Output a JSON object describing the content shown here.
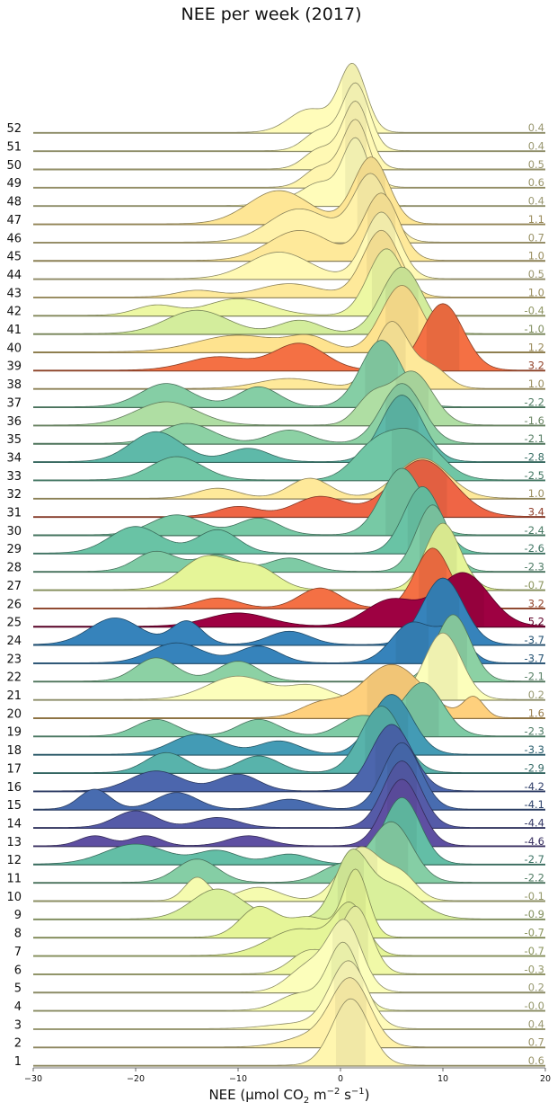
{
  "chart_data": {
    "type": "ridgeline",
    "title": "NEE per week (2017)",
    "xlabel": {
      "prefix": "NEE (µmol CO",
      "sub": "2",
      "mid1": " m",
      "sup1": "−2",
      "mid2": " s",
      "sup2": "−1",
      "suffix": ")"
    },
    "xlim": [
      -30,
      20
    ],
    "xticks": [
      -30,
      -20,
      -10,
      0,
      10,
      20
    ],
    "colormap": "Spectral_r",
    "mean_range": [
      -4.6,
      5.2
    ],
    "weeks": [
      {
        "week": 1,
        "mean": "0.6",
        "peaks": [
          [
            1,
            1.0,
            1.8
          ]
        ]
      },
      {
        "week": 2,
        "mean": "0.7",
        "peaks": [
          [
            1,
            1.0,
            1.9
          ],
          [
            -3,
            0.15,
            2.5
          ]
        ]
      },
      {
        "week": 3,
        "mean": "0.4",
        "peaks": [
          [
            0.8,
            1.0,
            1.8
          ],
          [
            -4,
            0.08,
            3
          ]
        ]
      },
      {
        "week": 4,
        "mean": "-0.0",
        "peaks": [
          [
            0.3,
            1.0,
            1.5
          ],
          [
            -4,
            0.25,
            2
          ]
        ]
      },
      {
        "week": 5,
        "mean": "0.2",
        "peaks": [
          [
            0.5,
            1.0,
            1.6
          ],
          [
            -3,
            0.4,
            2
          ]
        ]
      },
      {
        "week": 6,
        "mean": "-0.3",
        "peaks": [
          [
            1.5,
            1.0,
            1.5
          ],
          [
            -3,
            0.35,
            1.8
          ]
        ]
      },
      {
        "week": 7,
        "mean": "-0.7",
        "peaks": [
          [
            1,
            0.7,
            1.5
          ],
          [
            -4,
            0.4,
            3
          ]
        ]
      },
      {
        "week": 8,
        "mean": "-0.7",
        "peaks": [
          [
            1.5,
            1.0,
            1.2
          ],
          [
            -8,
            0.45,
            1.8
          ],
          [
            -3,
            0.3,
            2
          ]
        ]
      },
      {
        "week": 9,
        "mean": "-0.9",
        "peaks": [
          [
            1,
            0.9,
            1.6
          ],
          [
            -12,
            0.45,
            2.5
          ],
          [
            5,
            0.5,
            2.5
          ]
        ]
      },
      {
        "week": 10,
        "mean": "-0.1",
        "peaks": [
          [
            2,
            0.8,
            2
          ],
          [
            -14,
            0.35,
            1.2
          ],
          [
            -8,
            0.2,
            2
          ],
          [
            6,
            0.35,
            1.5
          ]
        ]
      },
      {
        "week": 11,
        "mean": "-2.2",
        "peaks": [
          [
            5,
            0.9,
            2
          ],
          [
            -14,
            0.35,
            2
          ],
          [
            0,
            0.25,
            2
          ]
        ]
      },
      {
        "week": 12,
        "mean": "-2.7",
        "peaks": [
          [
            6,
            1.0,
            1.8
          ],
          [
            -20,
            0.3,
            3
          ],
          [
            -12,
            0.2,
            2
          ],
          [
            -5,
            0.15,
            2
          ]
        ]
      },
      {
        "week": 13,
        "mean": "-4.6",
        "peaks": [
          [
            6,
            1.0,
            1.8
          ],
          [
            -24,
            0.15,
            1.5
          ],
          [
            -19,
            0.15,
            1.5
          ],
          [
            -9,
            0.15,
            2
          ]
        ]
      },
      {
        "week": 14,
        "mean": "-4.4",
        "peaks": [
          [
            6,
            1.0,
            1.8
          ],
          [
            -20,
            0.25,
            2
          ],
          [
            -12,
            0.15,
            2
          ]
        ]
      },
      {
        "week": 15,
        "mean": "-4.1",
        "peaks": [
          [
            6,
            1.0,
            1.8
          ],
          [
            -24,
            0.3,
            1.5
          ],
          [
            -16,
            0.25,
            2
          ],
          [
            -5,
            0.15,
            2
          ]
        ]
      },
      {
        "week": 16,
        "mean": "-4.2",
        "peaks": [
          [
            5,
            1.0,
            2
          ],
          [
            -18,
            0.3,
            2.5
          ],
          [
            -10,
            0.25,
            2
          ]
        ]
      },
      {
        "week": 17,
        "mean": "-2.9",
        "peaks": [
          [
            4,
            1.0,
            2
          ],
          [
            -17,
            0.3,
            2
          ],
          [
            -8,
            0.25,
            2
          ]
        ]
      },
      {
        "week": 18,
        "mean": "-3.3",
        "peaks": [
          [
            5,
            0.9,
            2
          ],
          [
            -14,
            0.3,
            2.5
          ],
          [
            -6,
            0.2,
            2
          ]
        ]
      },
      {
        "week": 19,
        "mean": "-2.3",
        "peaks": [
          [
            8,
            0.8,
            2
          ],
          [
            -18,
            0.25,
            2
          ],
          [
            -8,
            0.25,
            2
          ],
          [
            2,
            0.3,
            2
          ]
        ]
      },
      {
        "week": 20,
        "mean": "1.6",
        "peaks": [
          [
            5,
            0.8,
            3
          ],
          [
            13,
            0.3,
            1
          ],
          [
            -2,
            0.2,
            2
          ]
        ]
      },
      {
        "week": 21,
        "mean": "0.2",
        "peaks": [
          [
            10,
            1.0,
            1.8
          ],
          [
            -10,
            0.35,
            3
          ],
          [
            -3,
            0.2,
            2
          ]
        ]
      },
      {
        "week": 22,
        "mean": "-2.1",
        "peaks": [
          [
            11,
            1.0,
            1.7
          ],
          [
            -18,
            0.35,
            2
          ],
          [
            -10,
            0.3,
            2
          ]
        ]
      },
      {
        "week": 23,
        "mean": "-3.7",
        "peaks": [
          [
            7,
            0.6,
            2
          ],
          [
            11,
            0.45,
            1.5
          ],
          [
            -16,
            0.3,
            2.5
          ],
          [
            -8,
            0.25,
            2
          ]
        ]
      },
      {
        "week": 24,
        "mean": "-3.7",
        "peaks": [
          [
            10,
            1.0,
            2
          ],
          [
            -22,
            0.4,
            2.5
          ],
          [
            -15,
            0.35,
            1.5
          ],
          [
            -5,
            0.2,
            2
          ]
        ]
      },
      {
        "week": 25,
        "mean": "5.2",
        "peaks": [
          [
            12,
            0.8,
            2.5
          ],
          [
            5,
            0.4,
            2.5
          ],
          [
            -10,
            0.2,
            3
          ]
        ]
      },
      {
        "week": 26,
        "mean": "3.2",
        "peaks": [
          [
            9,
            0.9,
            1.7
          ],
          [
            -2,
            0.3,
            2
          ],
          [
            -12,
            0.15,
            2
          ]
        ]
      },
      {
        "week": 27,
        "mean": "-0.7",
        "peaks": [
          [
            10,
            1.0,
            1.7
          ],
          [
            -13,
            0.5,
            2.5
          ],
          [
            -8,
            0.3,
            2
          ]
        ]
      },
      {
        "week": 28,
        "mean": "-2.3",
        "peaks": [
          [
            9,
            1.0,
            1.6
          ],
          [
            -18,
            0.3,
            2
          ],
          [
            -12,
            0.25,
            2
          ],
          [
            -5,
            0.2,
            2
          ]
        ]
      },
      {
        "week": 29,
        "mean": "-2.6",
        "peaks": [
          [
            8,
            1.0,
            1.8
          ],
          [
            -20,
            0.4,
            2.5
          ],
          [
            -12,
            0.35,
            2
          ]
        ]
      },
      {
        "week": 30,
        "mean": "-2.4",
        "peaks": [
          [
            6,
            1.0,
            2
          ],
          [
            -16,
            0.3,
            2.5
          ],
          [
            -8,
            0.25,
            2
          ]
        ]
      },
      {
        "week": 31,
        "mean": "3.4",
        "peaks": [
          [
            8,
            0.85,
            3
          ],
          [
            -2,
            0.3,
            2.5
          ],
          [
            -10,
            0.15,
            2
          ]
        ]
      },
      {
        "week": 32,
        "mean": "1.0",
        "peaks": [
          [
            8,
            0.6,
            2.5
          ],
          [
            -3,
            0.3,
            2
          ],
          [
            -12,
            0.15,
            2
          ]
        ]
      },
      {
        "week": 33,
        "mean": "-2.5",
        "peaks": [
          [
            7,
            0.7,
            2.5
          ],
          [
            3,
            0.4,
            2
          ],
          [
            -16,
            0.35,
            2.5
          ]
        ]
      },
      {
        "week": 34,
        "mean": "-2.8",
        "peaks": [
          [
            6,
            1.0,
            2
          ],
          [
            -18,
            0.45,
            2.5
          ],
          [
            -9,
            0.2,
            2
          ]
        ]
      },
      {
        "week": 35,
        "mean": "-2.1",
        "peaks": [
          [
            6,
            0.9,
            2
          ],
          [
            -15,
            0.3,
            2.5
          ],
          [
            -5,
            0.2,
            2
          ]
        ]
      },
      {
        "week": 36,
        "mean": "-1.6",
        "peaks": [
          [
            7,
            0.8,
            2
          ],
          [
            -17,
            0.35,
            3
          ],
          [
            3,
            0.4,
            1.5
          ]
        ]
      },
      {
        "week": 37,
        "mean": "-2.2",
        "peaks": [
          [
            4,
            1.0,
            2
          ],
          [
            -17,
            0.35,
            2.5
          ],
          [
            -8,
            0.3,
            2
          ]
        ]
      },
      {
        "week": 38,
        "mean": "1.0",
        "peaks": [
          [
            5,
            1.0,
            1.7
          ],
          [
            9,
            0.3,
            1.5
          ],
          [
            -5,
            0.15,
            3
          ]
        ]
      },
      {
        "week": 39,
        "mean": "3.2",
        "peaks": [
          [
            10,
            1.0,
            2
          ],
          [
            -4,
            0.4,
            2.5
          ],
          [
            -12,
            0.2,
            3
          ]
        ]
      },
      {
        "week": 40,
        "mean": "1.2",
        "peaks": [
          [
            6,
            1.0,
            2
          ],
          [
            -10,
            0.25,
            4
          ],
          [
            -3,
            0.2,
            2
          ]
        ]
      },
      {
        "week": 41,
        "mean": "-1.0",
        "peaks": [
          [
            6,
            1.0,
            2
          ],
          [
            -14,
            0.35,
            3
          ],
          [
            -4,
            0.2,
            2
          ]
        ]
      },
      {
        "week": 42,
        "mean": "-0.4",
        "peaks": [
          [
            4.5,
            1.0,
            1.8
          ],
          [
            -10,
            0.25,
            3
          ],
          [
            -18,
            0.15,
            2
          ]
        ]
      },
      {
        "week": 43,
        "mean": "1.0",
        "peaks": [
          [
            4,
            1.0,
            1.8
          ],
          [
            -5,
            0.2,
            3
          ],
          [
            -14,
            0.1,
            2
          ]
        ]
      },
      {
        "week": 44,
        "mean": "0.5",
        "peaks": [
          [
            4,
            1.0,
            1.7
          ],
          [
            -6,
            0.4,
            3
          ]
        ]
      },
      {
        "week": 45,
        "mean": "1.0",
        "peaks": [
          [
            4,
            1.0,
            1.7
          ],
          [
            -4,
            0.45,
            3
          ]
        ]
      },
      {
        "week": 46,
        "mean": "0.7",
        "peaks": [
          [
            3,
            1.0,
            1.7
          ],
          [
            -4,
            0.5,
            3
          ]
        ]
      },
      {
        "week": 47,
        "mean": "1.1",
        "peaks": [
          [
            3,
            1.0,
            1.7
          ],
          [
            -6,
            0.5,
            3
          ]
        ]
      },
      {
        "week": 48,
        "mean": "0.4",
        "peaks": [
          [
            1.5,
            1.0,
            1.3
          ],
          [
            -2,
            0.3,
            1.5
          ],
          [
            -5,
            0.1,
            2
          ]
        ]
      },
      {
        "week": 49,
        "mean": "0.6",
        "peaks": [
          [
            1.5,
            1.0,
            1.3
          ],
          [
            -2,
            0.3,
            1.5
          ]
        ]
      },
      {
        "week": 50,
        "mean": "0.5",
        "peaks": [
          [
            1.5,
            1.0,
            1.3
          ],
          [
            -2,
            0.3,
            1.5
          ]
        ]
      },
      {
        "week": 51,
        "mean": "0.4",
        "peaks": [
          [
            1.5,
            1.0,
            1.3
          ],
          [
            -2,
            0.3,
            1.5
          ]
        ]
      },
      {
        "week": 52,
        "mean": "0.4",
        "peaks": [
          [
            1.2,
            1.0,
            1.3
          ],
          [
            -3,
            0.35,
            2
          ]
        ]
      }
    ]
  }
}
